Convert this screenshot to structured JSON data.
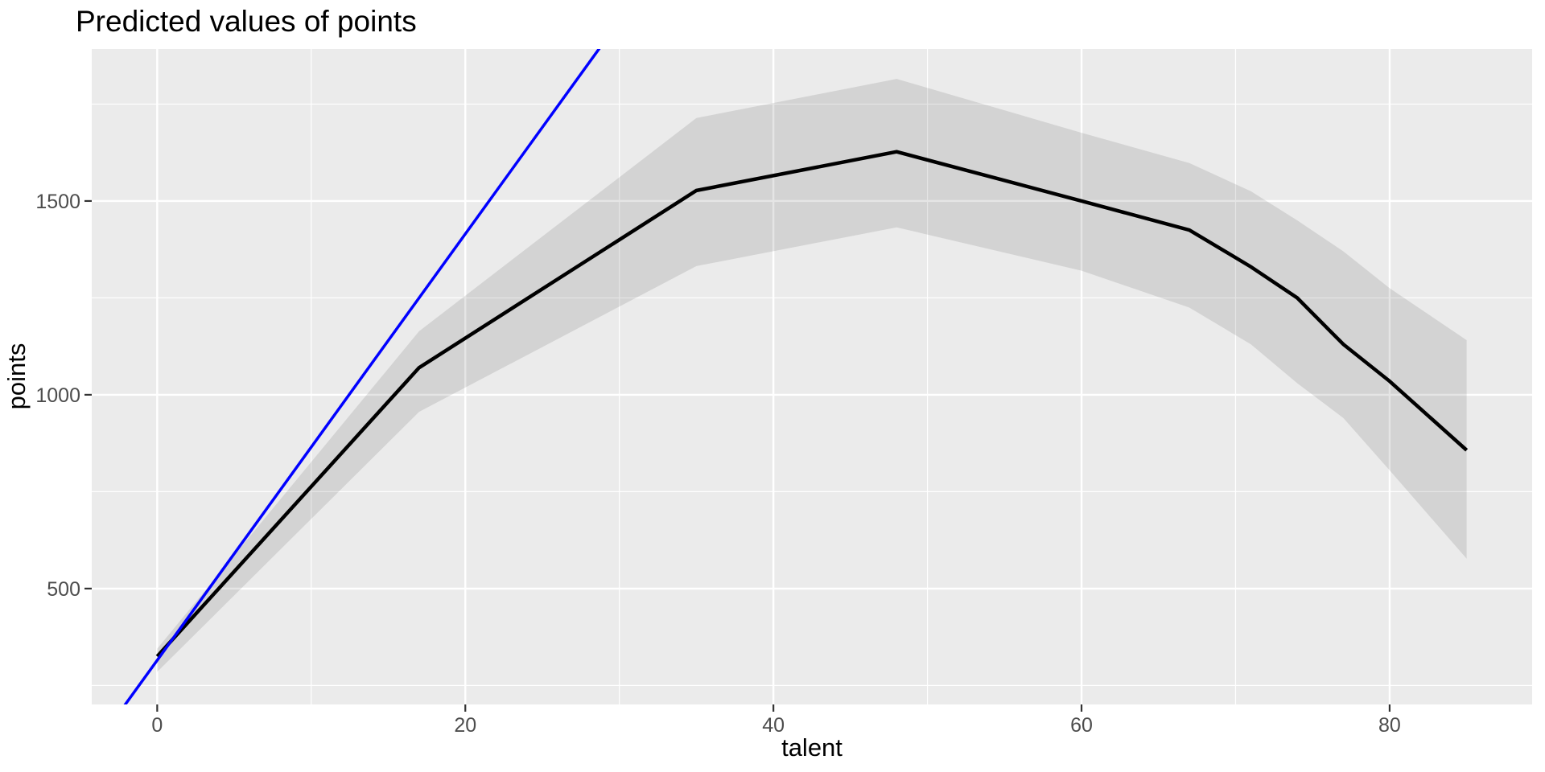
{
  "page_title": "Predicted values of points",
  "chart_data": {
    "type": "line",
    "title": "Predicted values of points",
    "xlabel": "talent",
    "ylabel": "points",
    "legend": "none",
    "grid": true,
    "panel_bg": "#EBEBEB",
    "grid_color": "#FFFFFF",
    "tick_color": "#333333",
    "tick_label_color": "#4D4D4D",
    "ribbon_fill": "rgba(0,0,0,0.10)",
    "xlim": [
      -4.25,
      89.25
    ],
    "ylim": [
      201,
      1892
    ],
    "x_ticks": [
      0,
      20,
      40,
      60,
      80
    ],
    "x_minor": [
      10,
      30,
      50,
      70
    ],
    "y_ticks": [
      500,
      1000,
      1500
    ],
    "y_minor": [
      250,
      750,
      1250,
      1750
    ],
    "x": [
      0,
      17,
      35,
      48,
      60,
      67,
      71,
      74,
      77,
      80,
      85
    ],
    "series": [
      {
        "name": "predicted-points",
        "kind": "line",
        "color": "#000000",
        "width": 4.5,
        "values": [
          325,
          1070,
          1527,
          1627,
          1500,
          1425,
          1330,
          1250,
          1130,
          1035,
          857
        ]
      },
      {
        "name": "ci-lower",
        "kind": "ribbon-lower",
        "values": [
          285,
          956,
          1332,
          1432,
          1320,
          1225,
          1130,
          1030,
          940,
          805,
          577
        ]
      },
      {
        "name": "ci-upper",
        "kind": "ribbon-upper",
        "values": [
          345,
          1164,
          1714,
          1815,
          1676,
          1598,
          1525,
          1450,
          1370,
          1275,
          1141
        ]
      }
    ],
    "reference_line": {
      "name": "linear-reference",
      "color": "#0000FF",
      "width": 3.5,
      "slope": 55,
      "intercept": 315,
      "x_range": [
        -4.25,
        30
      ]
    }
  }
}
